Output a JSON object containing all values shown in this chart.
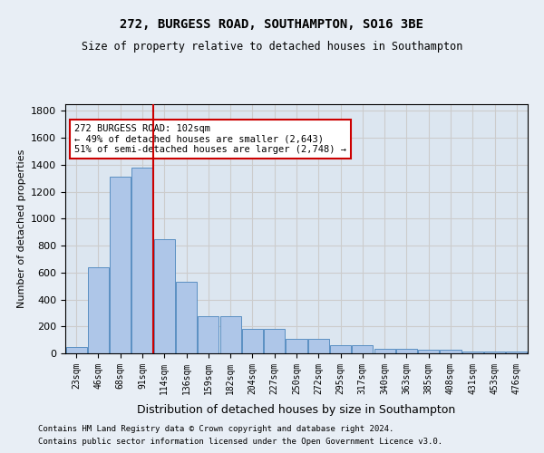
{
  "title1": "272, BURGESS ROAD, SOUTHAMPTON, SO16 3BE",
  "title2": "Size of property relative to detached houses in Southampton",
  "xlabel": "Distribution of detached houses by size in Southampton",
  "ylabel": "Number of detached properties",
  "categories": [
    "23sqm",
    "46sqm",
    "68sqm",
    "91sqm",
    "114sqm",
    "136sqm",
    "159sqm",
    "182sqm",
    "204sqm",
    "227sqm",
    "250sqm",
    "272sqm",
    "295sqm",
    "317sqm",
    "340sqm",
    "363sqm",
    "385sqm",
    "408sqm",
    "431sqm",
    "453sqm",
    "476sqm"
  ],
  "values": [
    50,
    640,
    1310,
    1380,
    845,
    530,
    275,
    275,
    185,
    185,
    105,
    105,
    60,
    60,
    35,
    35,
    25,
    25,
    12,
    12,
    12
  ],
  "bar_color": "#aec6e8",
  "bar_edge_color": "#5a8fc2",
  "vline_x": 4.0,
  "vline_color": "#cc0000",
  "annotation_text": "272 BURGESS ROAD: 102sqm\n← 49% of detached houses are smaller (2,643)\n51% of semi-detached houses are larger (2,748) →",
  "annotation_box_color": "#ffffff",
  "annotation_box_edge_color": "#cc0000",
  "ylim": [
    0,
    1850
  ],
  "yticks": [
    0,
    200,
    400,
    600,
    800,
    1000,
    1200,
    1400,
    1600,
    1800
  ],
  "grid_color": "#cccccc",
  "background_color": "#e8eef5",
  "plot_bg_color": "#dce6f0",
  "footer1": "Contains HM Land Registry data © Crown copyright and database right 2024.",
  "footer2": "Contains public sector information licensed under the Open Government Licence v3.0."
}
